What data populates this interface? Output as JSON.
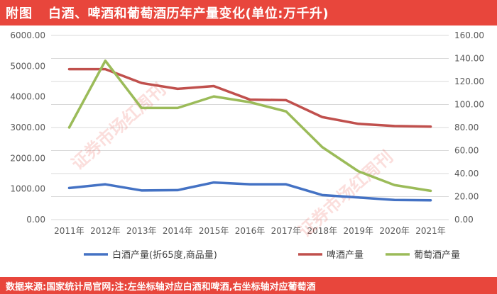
{
  "header": {
    "label": "附图",
    "title": "白酒、啤酒和葡萄酒历年产量变化(单位:万千升)"
  },
  "footer": {
    "text": "数据来源:国家统计局官网;注:左坐标轴对应白酒和啤酒,右坐标轴对应葡萄酒"
  },
  "watermark": {
    "text": "证券市场红周刊"
  },
  "colors": {
    "accent": "#e8463c",
    "baijiu": "#4472c4",
    "beer": "#c0504d",
    "wine": "#9bbb59"
  },
  "chart_data": {
    "type": "line",
    "categories": [
      "2011年",
      "2012年",
      "2013年",
      "2014年",
      "2015年",
      "2016年",
      "2017年",
      "2018年",
      "2019年",
      "2020年",
      "2021年"
    ],
    "y_left": {
      "ylim": [
        0,
        6000
      ],
      "ticks": [
        "0.00",
        "1000.00",
        "2000.00",
        "3000.00",
        "4000.00",
        "5000.00",
        "6000.00"
      ]
    },
    "y_right": {
      "ylim": [
        0,
        160
      ],
      "ticks": [
        "0.00",
        "20.00",
        "40.00",
        "60.00",
        "80.00",
        "100.00",
        "120.00",
        "140.00",
        "160.00"
      ]
    },
    "series": [
      {
        "name": "白酒产量(折65度,商品量)",
        "axis": "left",
        "color": "#4472c4",
        "values": [
          1030,
          1150,
          950,
          960,
          1210,
          1150,
          1150,
          800,
          720,
          640,
          630
        ]
      },
      {
        "name": "啤酒产量",
        "axis": "left",
        "color": "#c0504d",
        "values": [
          4900,
          4900,
          4450,
          4260,
          4350,
          3910,
          3890,
          3340,
          3120,
          3050,
          3030
        ]
      },
      {
        "name": "葡萄酒产量",
        "axis": "right",
        "color": "#9bbb59",
        "values": [
          80,
          138,
          97,
          97,
          107,
          102,
          94,
          63,
          42,
          30,
          25
        ]
      }
    ],
    "grid": true,
    "legend": "bottom"
  }
}
